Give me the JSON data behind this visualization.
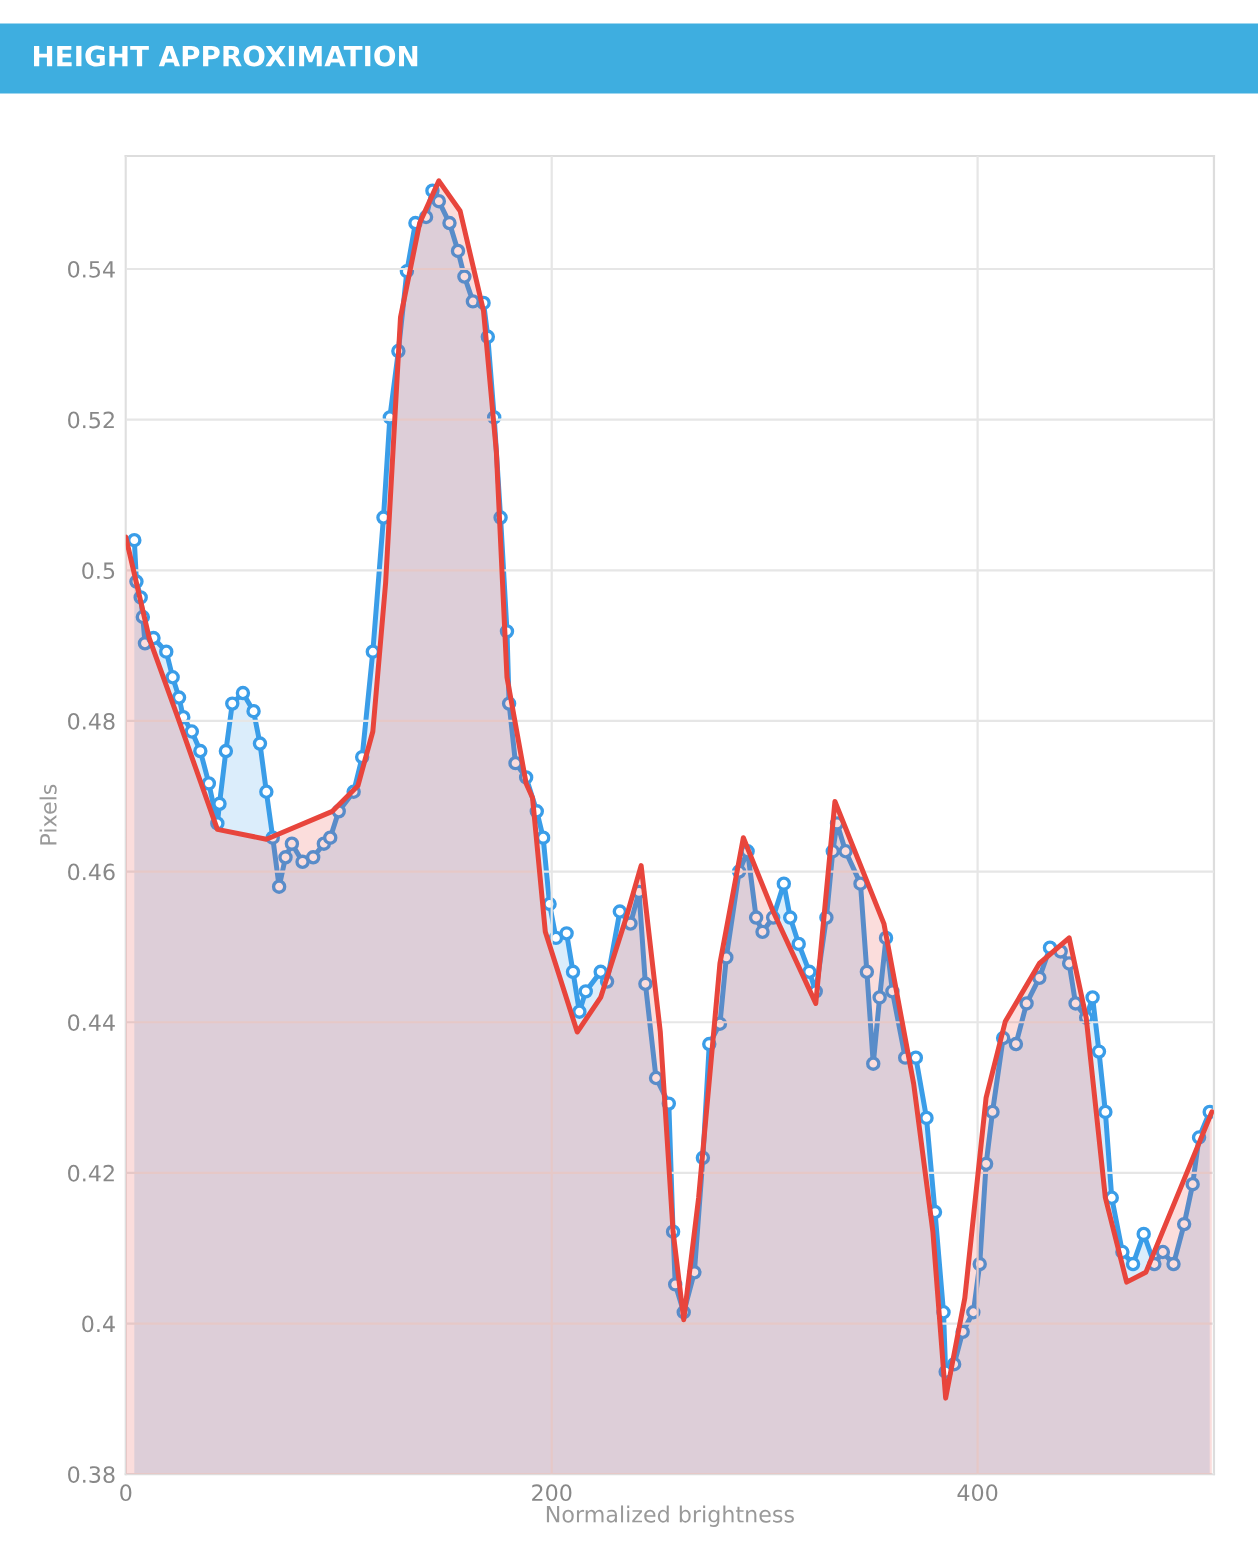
{
  "chart_data": {
    "type": "area",
    "title": "HEIGHT APPROXIMATION",
    "xlabel": "Normalized brightness",
    "ylabel": "Pixels",
    "xlim": [
      0,
      511
    ],
    "ylim": [
      0.38,
      0.555
    ],
    "xticks": [
      0,
      200,
      400
    ],
    "yticks": [
      0.38,
      0.4,
      0.42,
      0.44,
      0.46,
      0.48,
      0.5,
      0.52,
      0.54
    ],
    "grid": true,
    "legend": false,
    "series": [
      {
        "color": "#3a9de8",
        "marker": "circle",
        "x": [
          4,
          5,
          7,
          8,
          9,
          13,
          19,
          22,
          25,
          27,
          31,
          35,
          39,
          43,
          44,
          47,
          50,
          55,
          60,
          63,
          66,
          69,
          72,
          75,
          78,
          83,
          88,
          93,
          96,
          100,
          107,
          111,
          116,
          121,
          124,
          128,
          132,
          136,
          141,
          144,
          147,
          152,
          156,
          159,
          163,
          168,
          170,
          173,
          176,
          179,
          180,
          183,
          188,
          193,
          196,
          199,
          202,
          207,
          210,
          213,
          216,
          223,
          226,
          232,
          237,
          241,
          244,
          249,
          255,
          257,
          258,
          262,
          267,
          271,
          274,
          279,
          282,
          288,
          292,
          296,
          299,
          304,
          309,
          312,
          316,
          321,
          324,
          329,
          332,
          334,
          338,
          345,
          348,
          351,
          354,
          357,
          360,
          366,
          371,
          376,
          380,
          384,
          385,
          389,
          393,
          398,
          401,
          404,
          407,
          412,
          418,
          423,
          429,
          434,
          439,
          443,
          446,
          451,
          454,
          457,
          460,
          463,
          468,
          473,
          478,
          483,
          487,
          492,
          497,
          501,
          504,
          509
        ],
        "values": [
          0.504,
          0.4985,
          0.4964,
          0.4938,
          0.4903,
          0.491,
          0.4892,
          0.4858,
          0.4831,
          0.4805,
          0.4786,
          0.476,
          0.4717,
          0.4664,
          0.469,
          0.476,
          0.4823,
          0.4837,
          0.4813,
          0.477,
          0.4706,
          0.4645,
          0.458,
          0.4619,
          0.4637,
          0.4613,
          0.4619,
          0.4637,
          0.4645,
          0.468,
          0.4706,
          0.4752,
          0.4892,
          0.507,
          0.5203,
          0.5291,
          0.5397,
          0.5461,
          0.5469,
          0.5504,
          0.549,
          0.5461,
          0.5424,
          0.539,
          0.5357,
          0.5355,
          0.531,
          0.5203,
          0.507,
          0.4919,
          0.4823,
          0.4744,
          0.4725,
          0.468,
          0.4645,
          0.4557,
          0.4512,
          0.4518,
          0.4467,
          0.4414,
          0.4441,
          0.4467,
          0.4454,
          0.4547,
          0.4531,
          0.4573,
          0.4451,
          0.4326,
          0.4292,
          0.4122,
          0.4052,
          0.4015,
          0.4068,
          0.422,
          0.4371,
          0.4398,
          0.4486,
          0.46,
          0.4627,
          0.4539,
          0.452,
          0.4539,
          0.4584,
          0.4539,
          0.4504,
          0.4467,
          0.4441,
          0.4539,
          0.4627,
          0.4664,
          0.4627,
          0.4584,
          0.4467,
          0.4345,
          0.4433,
          0.4512,
          0.4441,
          0.4353,
          0.4353,
          0.4273,
          0.4148,
          0.4015,
          0.3936,
          0.3946,
          0.3989,
          0.4015,
          0.4079,
          0.4212,
          0.4281,
          0.4379,
          0.4371,
          0.4425,
          0.4459,
          0.4499,
          0.4494,
          0.4478,
          0.4425,
          0.4406,
          0.4433,
          0.4361,
          0.4281,
          0.4167,
          0.4095,
          0.4079,
          0.4119,
          0.4079,
          0.4095,
          0.4079,
          0.4132,
          0.4185,
          0.4247,
          0.4281
        ]
      },
      {
        "color": "#e8453c",
        "marker": "none",
        "x": [
          0,
          11,
          25,
          43,
          66,
          97,
          109,
          116,
          122,
          129,
          138,
          147,
          157,
          168,
          174,
          179,
          188,
          191,
          197,
          212,
          223,
          235,
          242,
          251,
          257,
          262,
          269,
          279,
          290,
          304,
          324,
          333,
          356,
          370,
          379,
          385,
          394,
          404,
          413,
          429,
          443,
          451,
          460,
          470,
          479,
          510
        ],
        "values": [
          0.5044,
          0.491,
          0.48,
          0.4656,
          0.4643,
          0.468,
          0.4714,
          0.4786,
          0.4983,
          0.5336,
          0.5461,
          0.5517,
          0.5477,
          0.5344,
          0.5158,
          0.4858,
          0.4717,
          0.4698,
          0.452,
          0.4387,
          0.4433,
          0.4539,
          0.4608,
          0.4387,
          0.4122,
          0.4005,
          0.4167,
          0.4478,
          0.4645,
          0.4547,
          0.4425,
          0.4693,
          0.4531,
          0.4318,
          0.4122,
          0.3901,
          0.4034,
          0.43,
          0.4401,
          0.4478,
          0.4512,
          0.4406,
          0.4167,
          0.4055,
          0.4068,
          0.4281
        ]
      }
    ]
  }
}
